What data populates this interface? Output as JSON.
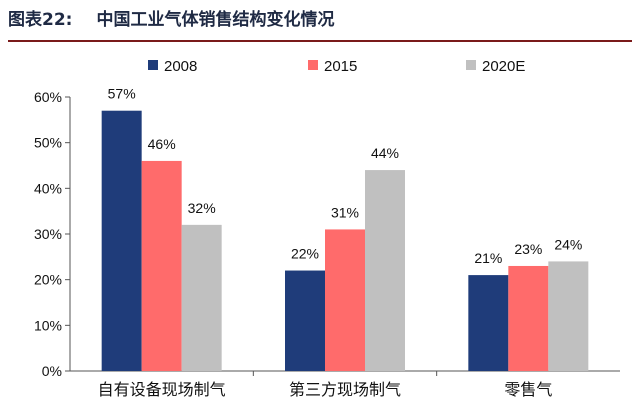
{
  "figure": {
    "number": "图表22:",
    "title": "中国工业气体销售结构变化情况"
  },
  "chart_data": {
    "type": "bar",
    "title": "",
    "xlabel": "",
    "ylabel": "",
    "categories": [
      "自有设备现场制气",
      "第三方现场制气",
      "零售气"
    ],
    "series": [
      {
        "name": "2008",
        "values": [
          57,
          22,
          21
        ],
        "color": "#1f3c7a"
      },
      {
        "name": "2015",
        "values": [
          46,
          31,
          23
        ],
        "color": "#ff6b6b"
      },
      {
        "name": "2020E",
        "values": [
          32,
          44,
          24
        ],
        "color": "#c0c0c0"
      }
    ],
    "data_labels": [
      [
        "57%",
        "22%",
        "21%"
      ],
      [
        "46%",
        "31%",
        "23%"
      ],
      [
        "32%",
        "44%",
        "24%"
      ]
    ],
    "ylim": [
      0,
      60
    ],
    "yticks": [
      0,
      10,
      20,
      30,
      40,
      50,
      60
    ],
    "ytick_labels": [
      "0%",
      "10%",
      "20%",
      "30%",
      "40%",
      "50%",
      "60%"
    ],
    "grid": false,
    "legend_position": "top"
  }
}
